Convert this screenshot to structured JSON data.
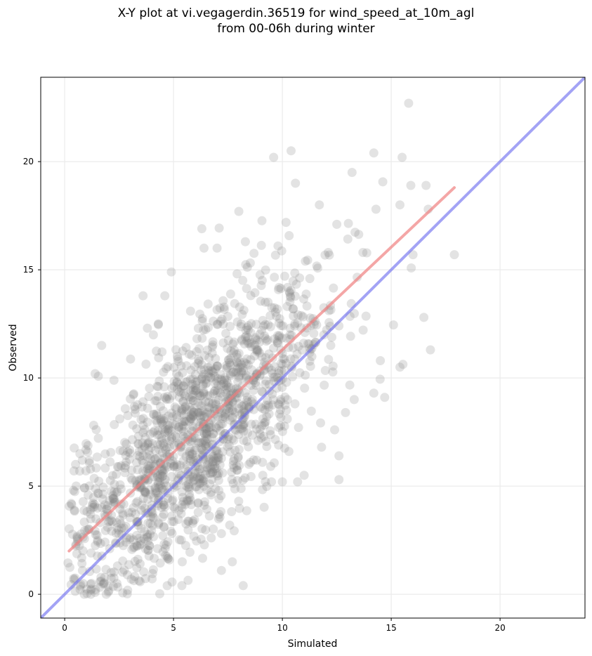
{
  "chart_data": {
    "type": "scatter",
    "title_line1": "X-Y plot at vi.vegagerdin.36519 for wind_speed_at_10m_agl",
    "title_line2": "from 00-06h during winter",
    "xlabel": "Simulated",
    "ylabel": "Observed",
    "xlim": [
      -1.1,
      23.9
    ],
    "ylim": [
      -1.1,
      23.9
    ],
    "xticks": [
      0,
      5,
      10,
      15,
      20
    ],
    "yticks": [
      0,
      5,
      10,
      15,
      20
    ],
    "grid": true,
    "point_color": "#808080",
    "point_opacity": 0.22,
    "n_points_estimated": 1500,
    "outlier_points": [
      [
        15.8,
        22.7
      ],
      [
        10.4,
        20.5
      ],
      [
        9.6,
        20.2
      ],
      [
        14.2,
        20.4
      ],
      [
        15.5,
        20.2
      ],
      [
        13.2,
        19.5
      ],
      [
        10.6,
        19.0
      ],
      [
        15.9,
        18.9
      ],
      [
        16.6,
        18.9
      ],
      [
        11.7,
        18.0
      ],
      [
        14.3,
        17.8
      ],
      [
        16.7,
        17.8
      ],
      [
        8.0,
        17.7
      ],
      [
        15.4,
        18.0
      ],
      [
        6.3,
        16.9
      ],
      [
        7.0,
        16.0
      ],
      [
        9.8,
        16.1
      ],
      [
        12.5,
        17.1
      ],
      [
        6.4,
        16.0
      ],
      [
        8.3,
        16.3
      ],
      [
        16.0,
        15.7
      ],
      [
        17.9,
        15.7
      ],
      [
        13.7,
        15.8
      ],
      [
        16.5,
        12.8
      ],
      [
        16.8,
        11.3
      ],
      [
        15.4,
        10.5
      ],
      [
        14.7,
        9.1
      ],
      [
        14.2,
        9.3
      ],
      [
        14.5,
        10.8
      ],
      [
        12.6,
        5.3
      ],
      [
        12.9,
        8.4
      ],
      [
        13.3,
        9.0
      ],
      [
        8.2,
        0.4
      ],
      [
        7.7,
        1.5
      ],
      [
        5.4,
        1.5
      ],
      [
        0.9,
        0.0
      ],
      [
        1.2,
        0.0
      ],
      [
        2.0,
        0.1
      ],
      [
        2.4,
        0.5
      ],
      [
        1.7,
        11.5
      ],
      [
        1.4,
        10.2
      ],
      [
        3.6,
        13.8
      ],
      [
        4.6,
        13.8
      ],
      [
        4.9,
        14.9
      ],
      [
        4.3,
        12.5
      ],
      [
        3.8,
        12.3
      ],
      [
        9.1,
        5.5
      ],
      [
        10.0,
        5.2
      ],
      [
        10.3,
        6.6
      ],
      [
        11.0,
        5.5
      ],
      [
        11.8,
        6.8
      ],
      [
        12.6,
        6.4
      ],
      [
        12.4,
        7.6
      ],
      [
        9.5,
        5.2
      ],
      [
        7.2,
        1.1
      ],
      [
        0.3,
        4.2
      ],
      [
        0.5,
        6.0
      ],
      [
        0.7,
        6.5
      ],
      [
        0.4,
        4.8
      ],
      [
        10.7,
        5.2
      ]
    ],
    "series": [
      {
        "name": "",
        "type": "fit-line",
        "x": [
          0.2,
          17.9
        ],
        "y": [
          2.0,
          18.8
        ],
        "color": "#f08080",
        "opacity": 0.7
      },
      {
        "name": "",
        "type": "identity-line",
        "x": [
          -1.1,
          23.9
        ],
        "y": [
          -1.1,
          23.9
        ],
        "color": "#6666ee",
        "opacity": 0.6
      }
    ]
  }
}
